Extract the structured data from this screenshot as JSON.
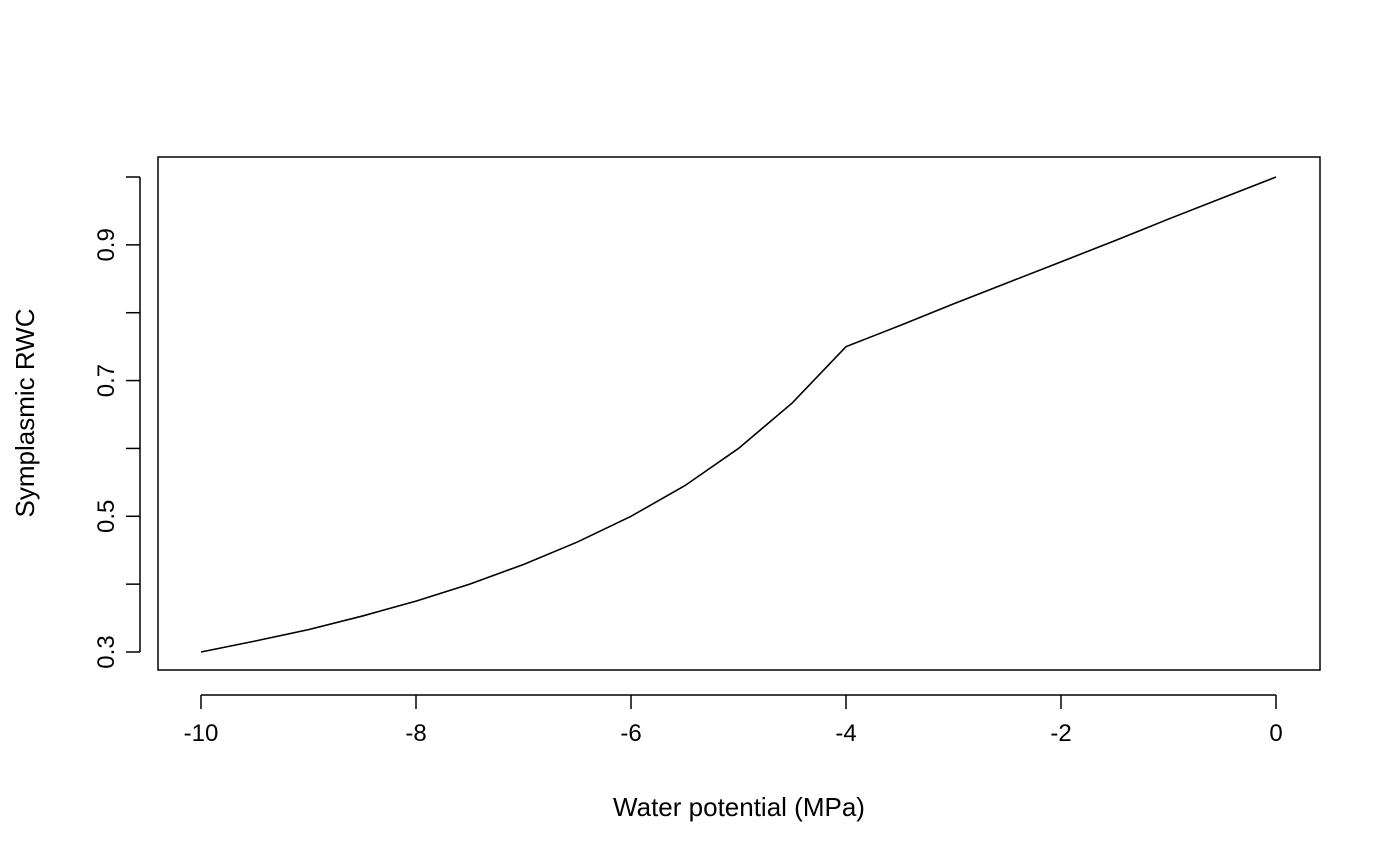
{
  "chart_data": {
    "type": "line",
    "title": "",
    "xlabel": "Water potential (MPa)",
    "ylabel": "Symplasmic RWC",
    "xlim": [
      -10,
      0
    ],
    "ylim": [
      0.3,
      1.0
    ],
    "x_ticks": [
      -10,
      -8,
      -6,
      -4,
      -2,
      0
    ],
    "x_tick_labels": [
      "-10",
      "-8",
      "-6",
      "-4",
      "-2",
      "0"
    ],
    "y_ticks": [
      0.3,
      0.4,
      0.5,
      0.6,
      0.7,
      0.8,
      0.9,
      1.0
    ],
    "y_tick_labels": [
      "0.3",
      "",
      "0.5",
      "",
      "0.7",
      "",
      "0.9",
      ""
    ],
    "grid": false,
    "legend": "none",
    "series": [
      {
        "x": [
          -10,
          -9.5,
          -9,
          -8.5,
          -8,
          -7.5,
          -7,
          -6.5,
          -6,
          -5.5,
          -5,
          -4.5,
          -4,
          -3.5,
          -3,
          -2.5,
          -2,
          -1.5,
          -1,
          -0.5,
          0
        ],
        "values": [
          0.3,
          0.316,
          0.333,
          0.353,
          0.375,
          0.4,
          0.429,
          0.462,
          0.5,
          0.545,
          0.6,
          0.667,
          0.75,
          0.781,
          0.813,
          0.844,
          0.875,
          0.906,
          0.938,
          0.969,
          1.0
        ]
      }
    ]
  }
}
